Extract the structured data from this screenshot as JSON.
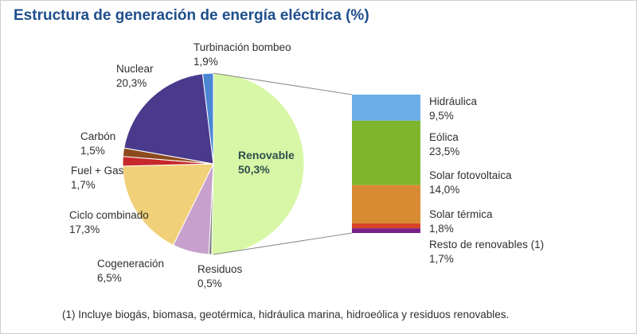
{
  "chart_data": {
    "type": "pie",
    "title": "Estructura de generación de energía eléctrica (%)",
    "slices": [
      {
        "label": "Renovable",
        "value_text": "50,3%",
        "value": 50.3,
        "color": "#d8f7a6"
      },
      {
        "label": "Residuos",
        "value_text": "0,5%",
        "value": 0.5,
        "color": "#7f7f7f"
      },
      {
        "label": "Cogeneración",
        "value_text": "6,5%",
        "value": 6.5,
        "color": "#c7a0cc"
      },
      {
        "label": "Ciclo combinado",
        "value_text": "17,3%",
        "value": 17.3,
        "color": "#f0d078"
      },
      {
        "label": "Fuel + Gas",
        "value_text": "1,7%",
        "value": 1.7,
        "color": "#c6282b"
      },
      {
        "label": "Carbón",
        "value_text": "1,5%",
        "value": 1.5,
        "color": "#8c4a1e"
      },
      {
        "label": "Nuclear",
        "value_text": "20,3%",
        "value": 20.3,
        "color": "#4a3a8c"
      },
      {
        "label": "Turbinación bombeo",
        "value_text": "1,9%",
        "value": 1.9,
        "color": "#4a86d4"
      }
    ],
    "breakdown": {
      "of": "Renovable",
      "items": [
        {
          "label": "Hidráulica",
          "value_text": "9,5%",
          "value": 9.5,
          "color": "#6aaee8"
        },
        {
          "label": "Eólica",
          "value_text": "23,5%",
          "value": 23.5,
          "color": "#7fb52d"
        },
        {
          "label": "Solar fotovoltaica",
          "value_text": "14,0%",
          "value": 14.0,
          "color": "#d98b34"
        },
        {
          "label": "Solar térmica",
          "value_text": "1,8%",
          "value": 1.8,
          "color": "#d8442a"
        },
        {
          "label": "Resto de renovables (1)",
          "value_text": "1,7%",
          "value": 1.7,
          "color": "#7a1f8a"
        }
      ]
    },
    "footnote": "(1) Incluye biogás, biomasa, geotérmica, hidráulica marina, hidroeólica y residuos renovables."
  }
}
